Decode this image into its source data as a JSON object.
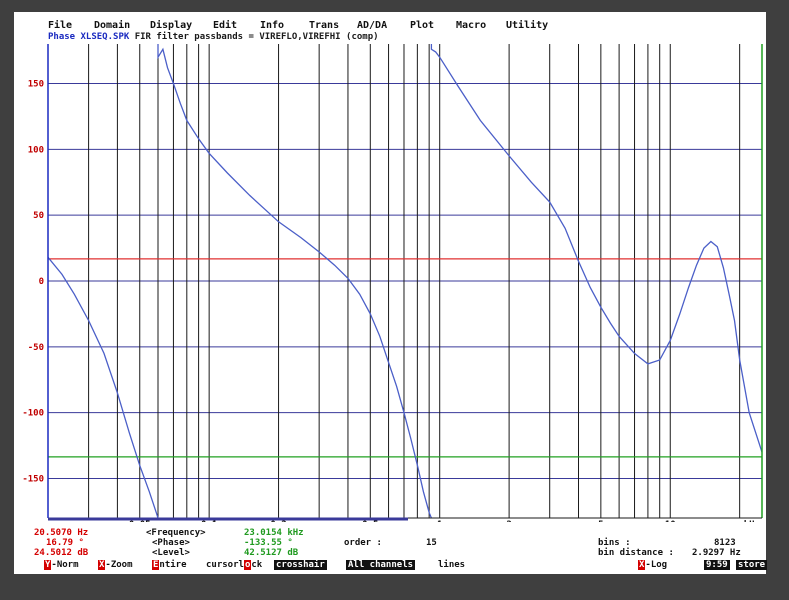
{
  "menu": [
    "File",
    "Domain",
    "Display",
    "Edit",
    "Info",
    "Trans",
    "AD/DA",
    "Plot",
    "Macro",
    "Utility"
  ],
  "title": {
    "prefix": "Phase XLSEQ.SPK",
    "rest": " FIR filter passbands = VIREFLO,VIREFHI (comp)"
  },
  "chart_data": {
    "type": "line",
    "title": "Phase XLSEQ.SPK FIR filter passbands = VIREFLO,VIREFHI (comp)",
    "xscale": "log",
    "xlim": [
      0.02,
      25
    ],
    "ylim": [
      -180,
      180
    ],
    "x_unit_label": "kHz",
    "y_ticks": [
      150,
      100,
      50,
      0,
      -50,
      -100,
      -150
    ],
    "x_ticks": [
      {
        "value": 0.05,
        "label": "0.05"
      },
      {
        "value": 0.1,
        "label": "0.1"
      },
      {
        "value": 0.2,
        "label": "0.2"
      },
      {
        "value": 0.5,
        "label": "0.5"
      },
      {
        "value": 1,
        "label": "1"
      },
      {
        "value": 2,
        "label": "2"
      },
      {
        "value": 5,
        "label": "5"
      },
      {
        "value": 10,
        "label": "10"
      }
    ],
    "reference_lines": [
      {
        "y": 16.79,
        "color": "#e03030"
      },
      {
        "y": -133.55,
        "color": "#20a020"
      }
    ],
    "grid_colors": {
      "horizontal": "#3a3a9a",
      "vertical": "#1a1a1a"
    },
    "series": [
      {
        "color": "#4b5fc8",
        "points": [
          [
            0.02,
            18
          ],
          [
            0.023,
            5
          ],
          [
            0.026,
            -10
          ],
          [
            0.03,
            -30
          ],
          [
            0.035,
            -55
          ],
          [
            0.04,
            -85
          ],
          [
            0.045,
            -115
          ],
          [
            0.05,
            -140
          ],
          [
            0.055,
            -160
          ],
          [
            0.059,
            -176
          ],
          [
            0.06,
            170
          ],
          [
            0.063,
            176
          ],
          [
            0.066,
            162
          ],
          [
            0.07,
            150
          ],
          [
            0.075,
            135
          ],
          [
            0.08,
            122
          ],
          [
            0.09,
            108
          ],
          [
            0.1,
            97
          ],
          [
            0.12,
            82
          ],
          [
            0.15,
            65
          ],
          [
            0.2,
            45
          ],
          [
            0.25,
            33
          ],
          [
            0.3,
            22
          ],
          [
            0.35,
            12
          ],
          [
            0.4,
            2
          ],
          [
            0.45,
            -10
          ],
          [
            0.5,
            -25
          ],
          [
            0.55,
            -42
          ],
          [
            0.6,
            -62
          ],
          [
            0.65,
            -80
          ],
          [
            0.7,
            -100
          ],
          [
            0.75,
            -120
          ],
          [
            0.8,
            -140
          ],
          [
            0.85,
            -160
          ],
          [
            0.9,
            -176
          ],
          [
            0.92,
            176
          ],
          [
            0.96,
            174
          ],
          [
            1.0,
            170
          ],
          [
            1.2,
            148
          ],
          [
            1.5,
            122
          ],
          [
            2.0,
            95
          ],
          [
            2.5,
            75
          ],
          [
            3.0,
            60
          ],
          [
            3.5,
            40
          ],
          [
            4.0,
            15
          ],
          [
            4.5,
            -5
          ],
          [
            5.0,
            -20
          ],
          [
            5.5,
            -32
          ],
          [
            6.0,
            -42
          ],
          [
            7.0,
            -55
          ],
          [
            8.0,
            -63
          ],
          [
            9.0,
            -60
          ],
          [
            10.0,
            -45
          ],
          [
            11.0,
            -25
          ],
          [
            12.0,
            -5
          ],
          [
            13.0,
            12
          ],
          [
            14.0,
            25
          ],
          [
            15.0,
            30
          ],
          [
            16.0,
            26
          ],
          [
            17.0,
            10
          ],
          [
            18.0,
            -10
          ],
          [
            19.0,
            -30
          ],
          [
            20.0,
            -60
          ],
          [
            22.0,
            -100
          ],
          [
            25.0,
            -130
          ]
        ]
      }
    ]
  },
  "info": {
    "cursor_freq": "20.5070 Hz",
    "cursor_phase": "16.79 °",
    "cursor_level": "24.5012 dB",
    "frequency_label": "<Frequency>",
    "phase_label": "<Phase>",
    "level_label": "<Level>",
    "frequency_value": "23.0154 kHz",
    "phase_value": "-133.55 °",
    "level_value": "42.5127 dB",
    "order_label": "order  :",
    "order_value": "15",
    "bins_label": "bins         :",
    "bins_value": "8123",
    "bin_distance_label": "bin distance :",
    "bin_distance_value": "2.9297 Hz"
  },
  "fkeys": {
    "ynorm_hot": "Y",
    "ynorm_rest": "-Norm",
    "xzoom_hot": "X",
    "xzoom_rest": "-Zoom",
    "entire_hot": "E",
    "entire_rest": "ntire",
    "cursorlock_a": "cursorl",
    "cursorlock_hot": "o",
    "cursorlock_b": "ck",
    "crosshair": "crosshair",
    "allchannels_hot": "A",
    "allchannels_rest": "ll channels",
    "lines": "lines",
    "xlog_hot": "X",
    "xlog_rest": "-Log",
    "time": "9:59",
    "store": "store"
  }
}
